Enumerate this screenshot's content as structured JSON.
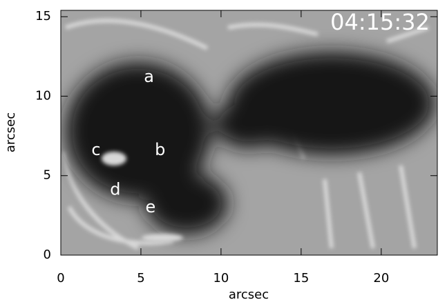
{
  "chart_data": {
    "type": "image",
    "timestamp": "04:15:32",
    "xlabel": "arcsec",
    "ylabel": "arcsec",
    "xlim": [
      0,
      23.5
    ],
    "ylim": [
      0,
      15.4
    ],
    "xticks": [
      0,
      5,
      10,
      15,
      20
    ],
    "yticks": [
      0,
      5,
      10,
      15
    ],
    "annotations": [
      {
        "text": "a",
        "x": 5.5,
        "y": 11.2
      },
      {
        "text": "b",
        "x": 6.2,
        "y": 6.6
      },
      {
        "text": "c",
        "x": 2.2,
        "y": 6.6
      },
      {
        "text": "d",
        "x": 3.4,
        "y": 4.1
      },
      {
        "text": "e",
        "x": 5.6,
        "y": 3.0
      }
    ]
  }
}
